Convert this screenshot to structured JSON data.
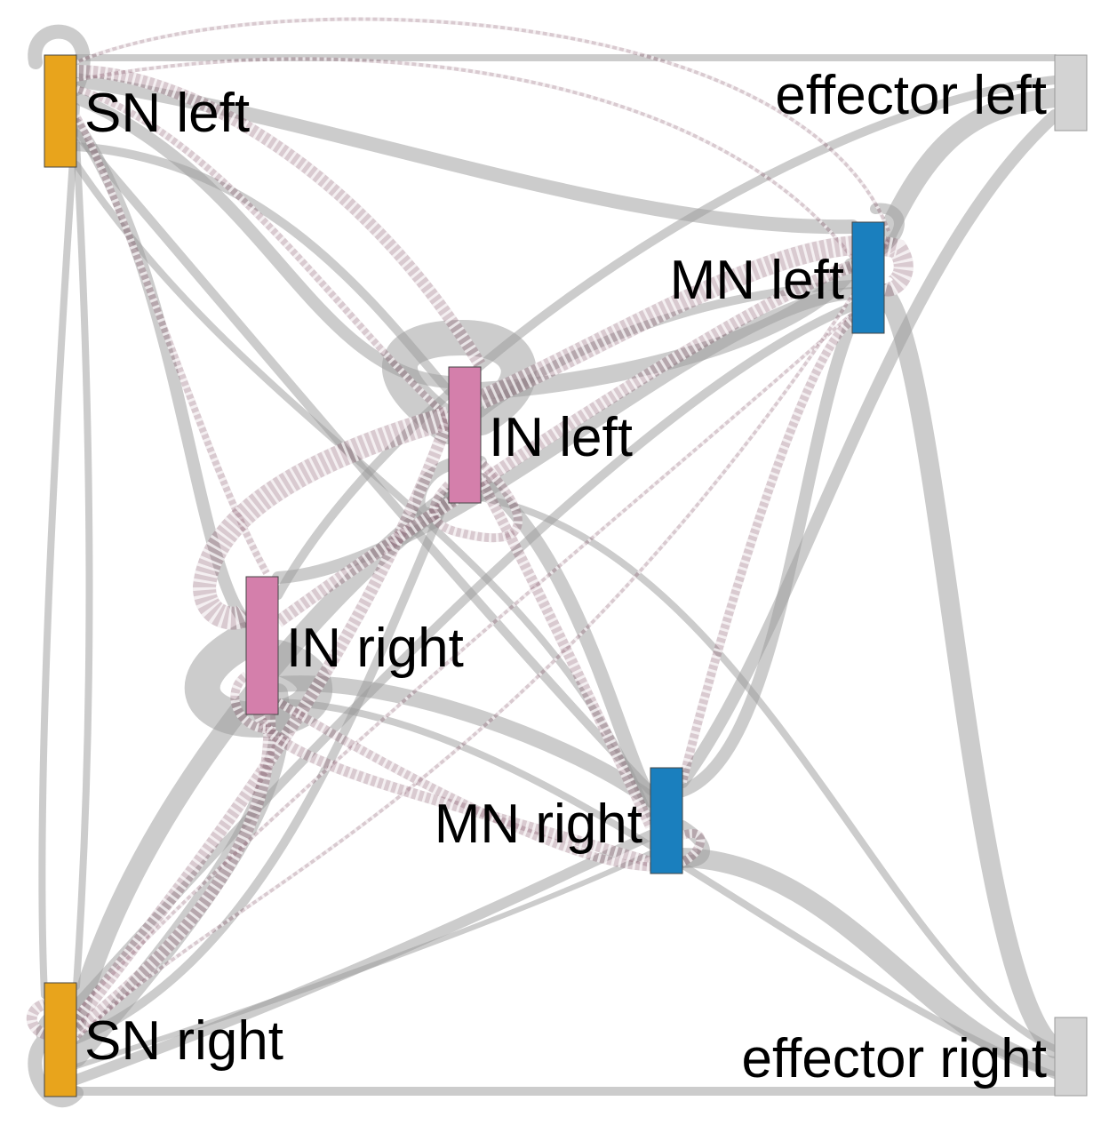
{
  "nodes": [
    {
      "id": "sn-left",
      "label": "SN left",
      "color": "#e8a41c"
    },
    {
      "id": "sn-right",
      "label": "SN right",
      "color": "#e8a41c"
    },
    {
      "id": "in-left",
      "label": "IN left",
      "color": "#d47fab"
    },
    {
      "id": "in-right",
      "label": "IN right",
      "color": "#d47fab"
    },
    {
      "id": "mn-left",
      "label": "MN left",
      "color": "#1a7fbe"
    },
    {
      "id": "mn-right",
      "label": "MN right",
      "color": "#1a7fbe"
    },
    {
      "id": "effector-left",
      "label": "effector left",
      "color": "#d3d3d3"
    },
    {
      "id": "effector-right",
      "label": "effector right",
      "color": "#d3d3d3"
    }
  ],
  "edge_colors": {
    "excitatory": "#9a9a9a",
    "inhibitory": "#8a5a6e"
  }
}
